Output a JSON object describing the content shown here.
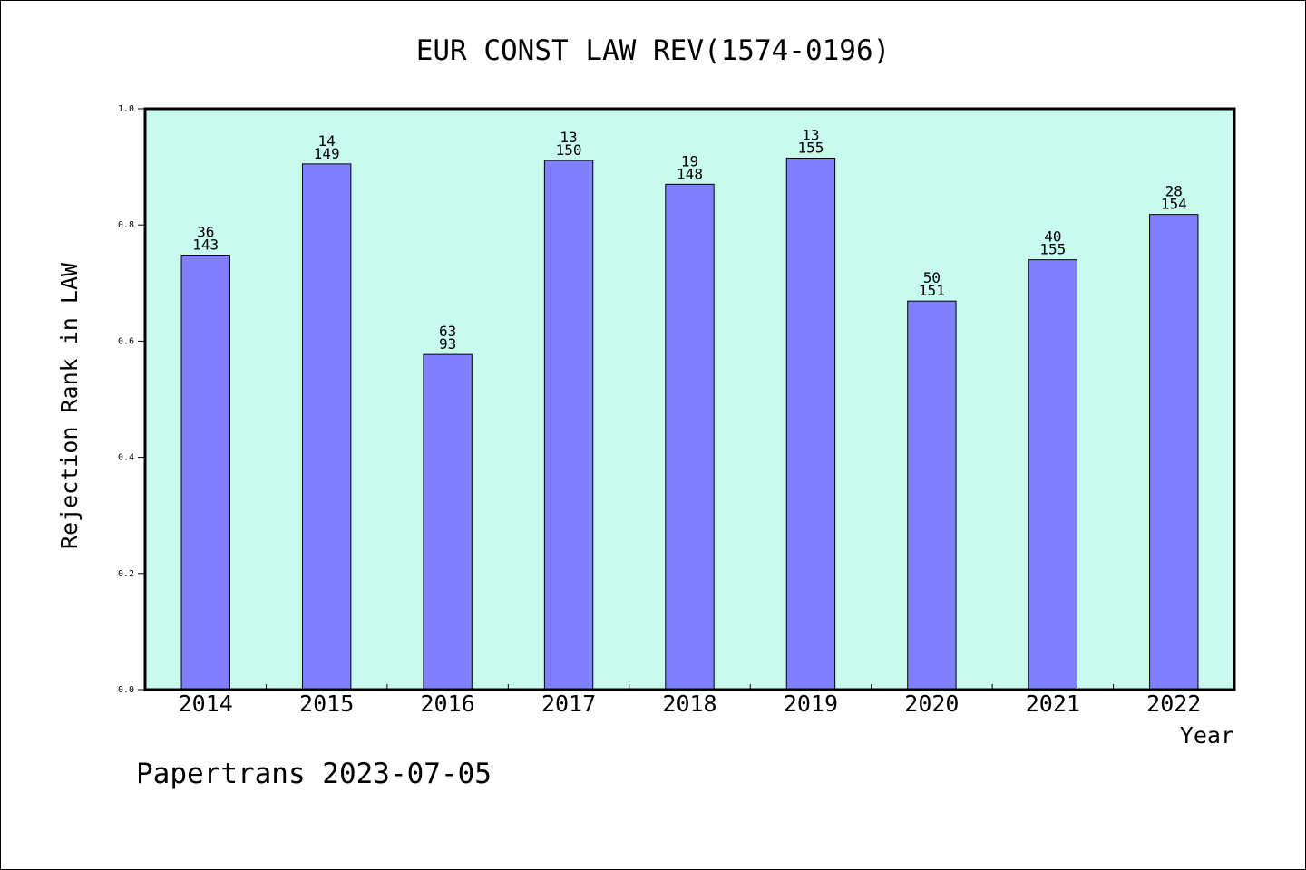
{
  "title": "EUR CONST LAW REV(1574-0196)",
  "footer": "Papertrans 2023-07-05",
  "colors": {
    "plot_background": "#c8faee",
    "bar_fill": "#8080ff",
    "bar_stroke": "#000000",
    "axis": "#000000"
  },
  "chart_data": {
    "type": "bar",
    "title": "EUR CONST LAW REV(1574-0196)",
    "xlabel": "Year",
    "ylabel": "Rejection Rank in LAW",
    "ylim": [
      0,
      1.0
    ],
    "yticks": [
      "0.0",
      "0.2",
      "0.4",
      "0.6",
      "0.8",
      "1.0"
    ],
    "categories": [
      "2014",
      "2015",
      "2016",
      "2017",
      "2018",
      "2019",
      "2020",
      "2021",
      "2022"
    ],
    "values": [
      0.748,
      0.905,
      0.577,
      0.911,
      0.87,
      0.915,
      0.669,
      0.74,
      0.818
    ],
    "label_top": [
      "36",
      "14",
      "63",
      "13",
      "19",
      "13",
      "50",
      "40",
      "28"
    ],
    "label_bottom": [
      "143",
      "149",
      "93",
      "150",
      "148",
      "155",
      "151",
      "155",
      "154"
    ],
    "grid": false,
    "legend": "none"
  }
}
